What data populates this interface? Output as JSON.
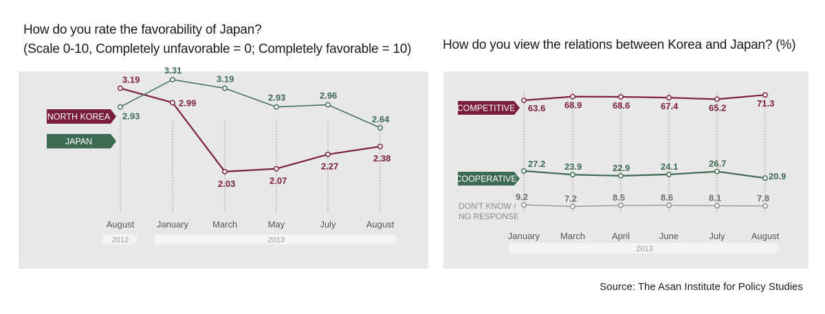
{
  "chart_data": [
    {
      "type": "line",
      "title": "How do you rate the favorability of Japan?",
      "subtitle": "(Scale 0-10, Completely unfavorable = 0; Completely favorable = 10)",
      "categories": [
        "August",
        "January",
        "March",
        "May",
        "July",
        "August"
      ],
      "year_bands": [
        {
          "label": "2012",
          "from": 0,
          "to": 0
        },
        {
          "label": "2013",
          "from": 1,
          "to": 5
        }
      ],
      "series": [
        {
          "name": "NORTH KOREA",
          "color": "#7a1e3c",
          "values": [
            3.19,
            2.99,
            2.03,
            2.07,
            2.27,
            2.38
          ]
        },
        {
          "name": "JAPAN",
          "color": "#3d6a52",
          "values": [
            2.93,
            3.31,
            3.19,
            2.93,
            2.96,
            2.64
          ]
        }
      ]
    },
    {
      "type": "line",
      "title": "How do you view the relations between Korea and Japan? (%)",
      "categories": [
        "January",
        "March",
        "April",
        "June",
        "July",
        "August"
      ],
      "year_bands": [
        {
          "label": "2013",
          "from": 0,
          "to": 5
        }
      ],
      "series": [
        {
          "name": "COMPETITIVE",
          "color": "#7a1e3c",
          "values": [
            63.6,
            68.9,
            68.6,
            67.4,
            65.2,
            71.3
          ]
        },
        {
          "name": "COOPERATIVE",
          "color": "#3d6a52",
          "values": [
            27.2,
            23.9,
            22.9,
            24.1,
            26.7,
            20.9
          ]
        },
        {
          "name": "DON'T KNOW / NO RESPONSE",
          "color": "#8a8a8a",
          "values": [
            9.2,
            7.2,
            8.5,
            8.6,
            8.1,
            7.8
          ]
        }
      ]
    }
  ],
  "source": "Source: The Asan Institute for Policy Studies"
}
